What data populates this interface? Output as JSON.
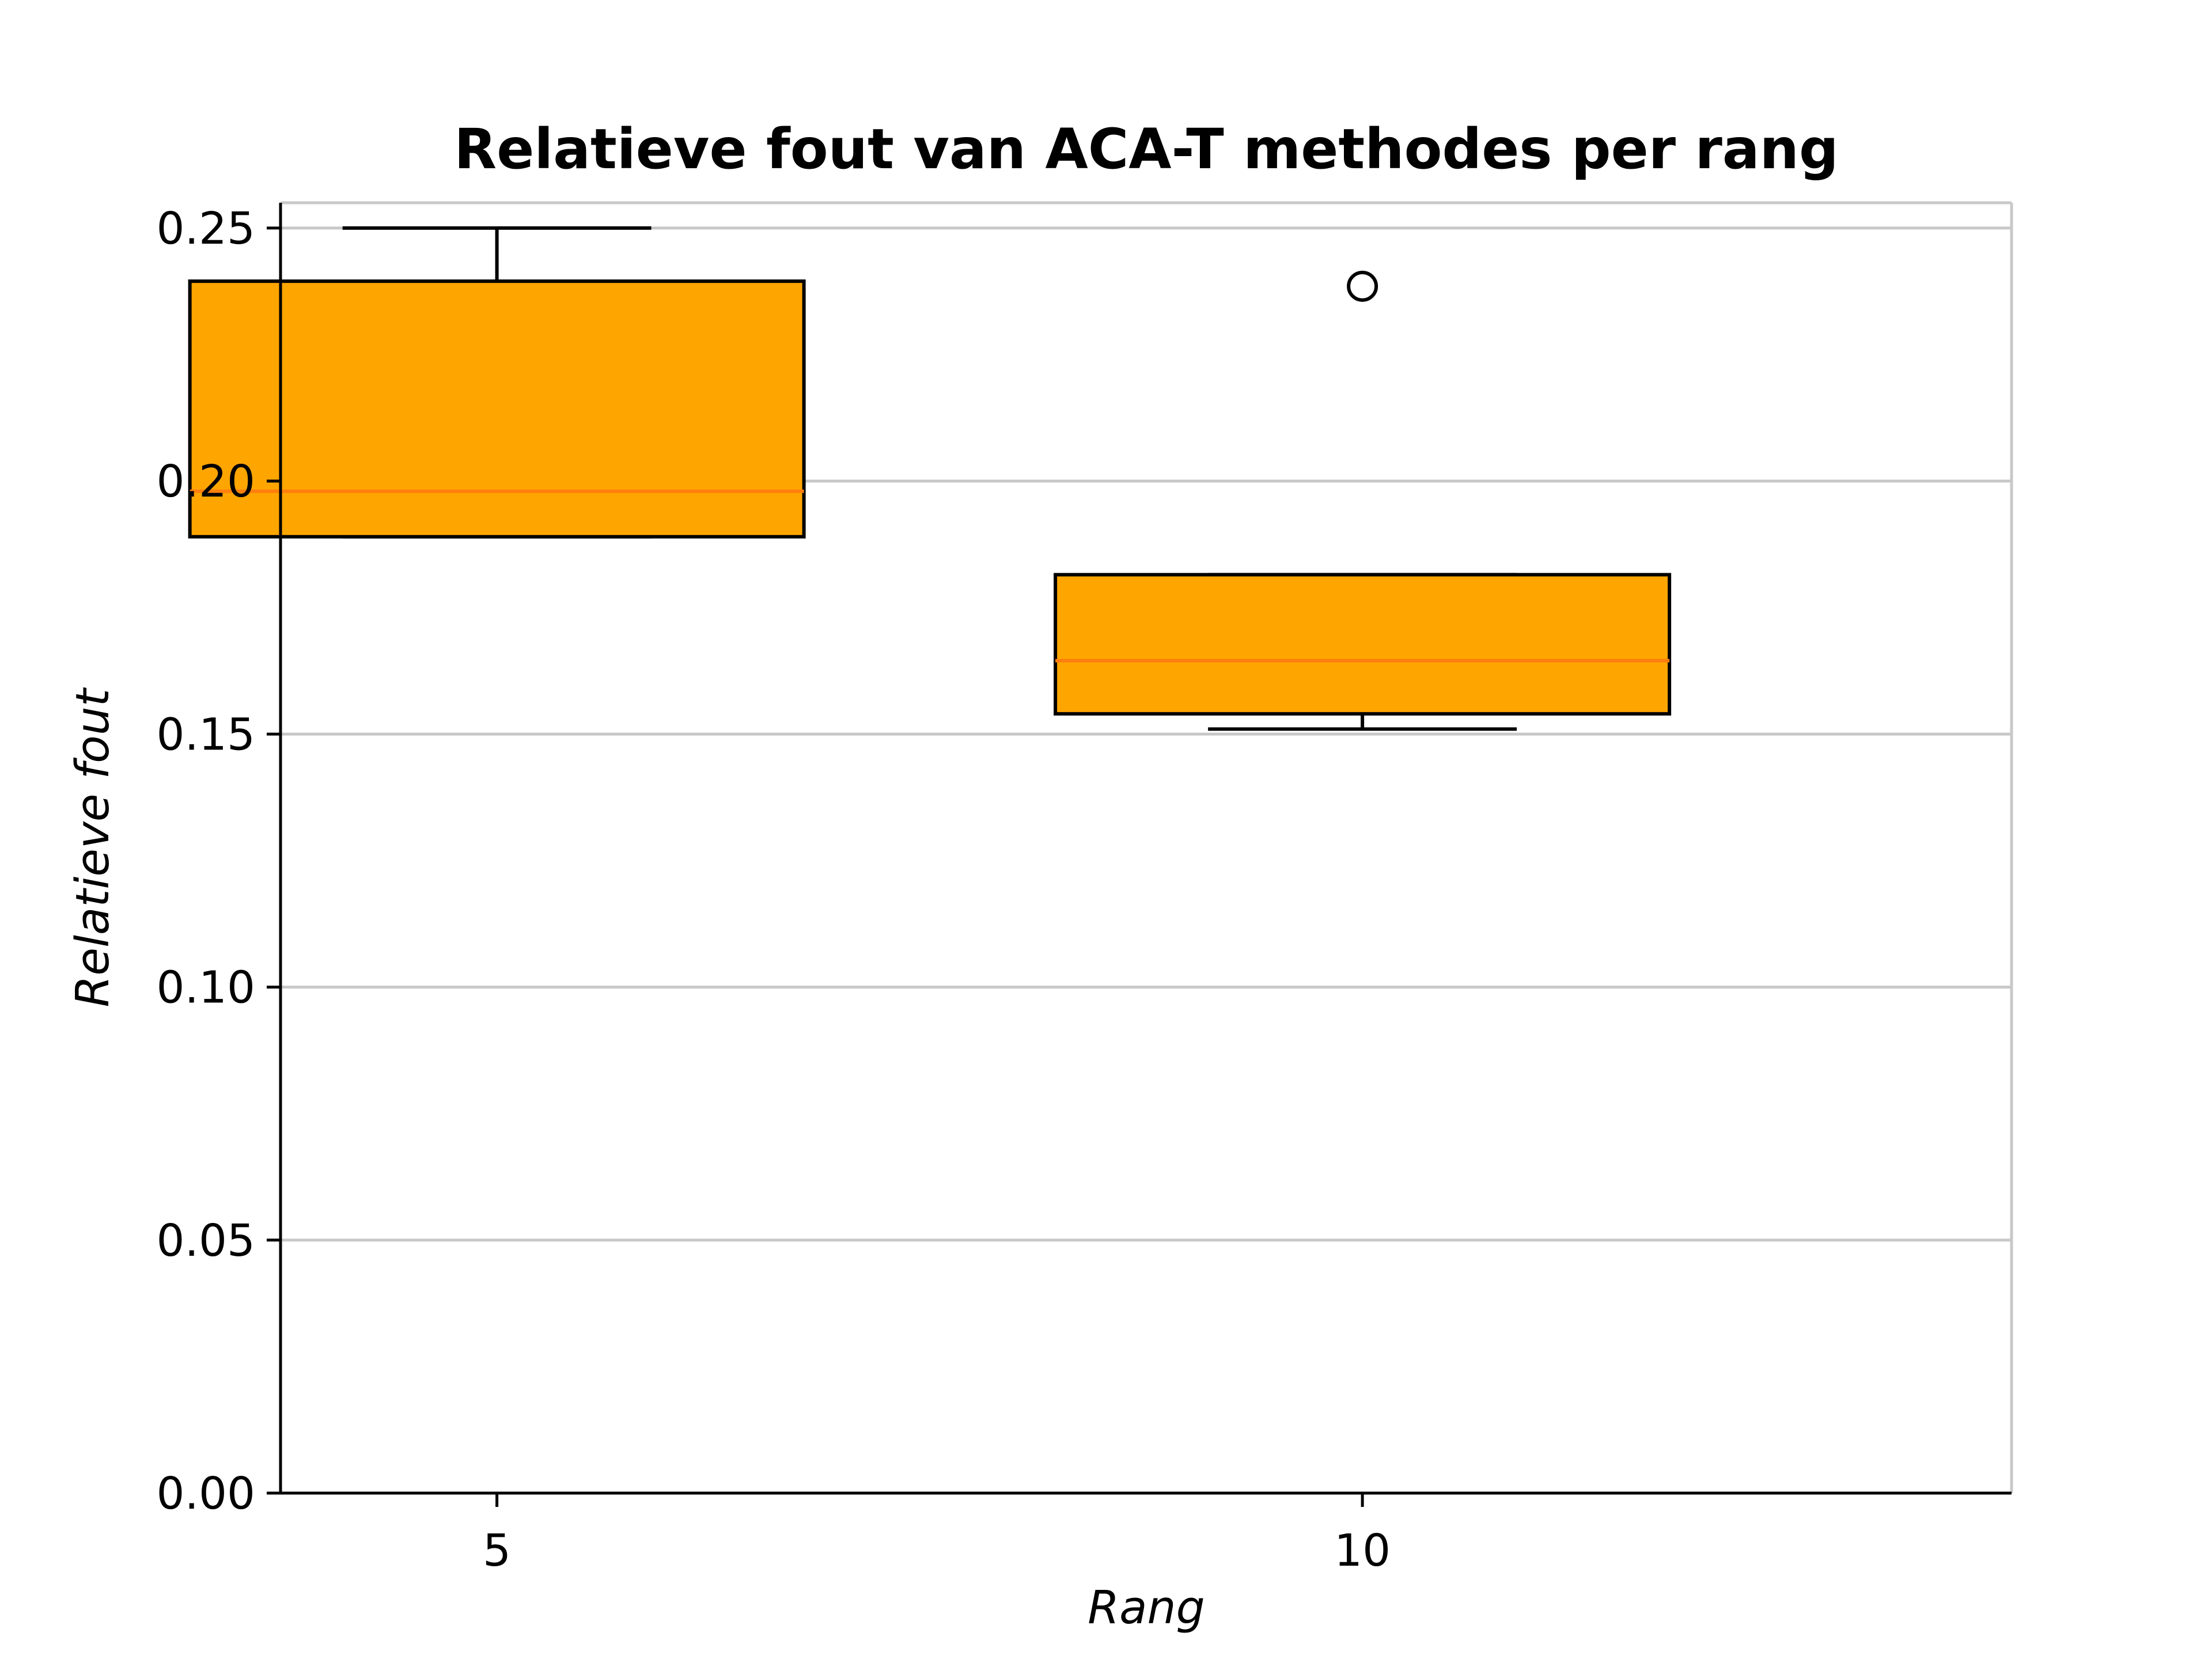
{
  "chart_data": {
    "type": "box",
    "title": "Relatieve fout van ACA-T methodes per rang",
    "xlabel": "Rang",
    "ylabel": "Relatieve fout",
    "categories": [
      "5",
      "10"
    ],
    "boxes": [
      {
        "category": "5",
        "whisker_low": 0.189,
        "q1": 0.189,
        "median": 0.198,
        "q3": 0.2395,
        "whisker_high": 0.25,
        "fliers": []
      },
      {
        "category": "10",
        "whisker_low": 0.151,
        "q1": 0.154,
        "median": 0.1645,
        "q3": 0.1815,
        "whisker_high": 0.1815,
        "fliers": [
          0.2385
        ]
      }
    ],
    "ylim": [
      0,
      0.255
    ],
    "yticks": [
      "0.00",
      "0.05",
      "0.10",
      "0.15",
      "0.20",
      "0.25"
    ],
    "grid": "horizontal",
    "colors": {
      "box_fill": "#ffa500",
      "median": "#ff7f0e",
      "grid": "#c8c8c8"
    }
  }
}
